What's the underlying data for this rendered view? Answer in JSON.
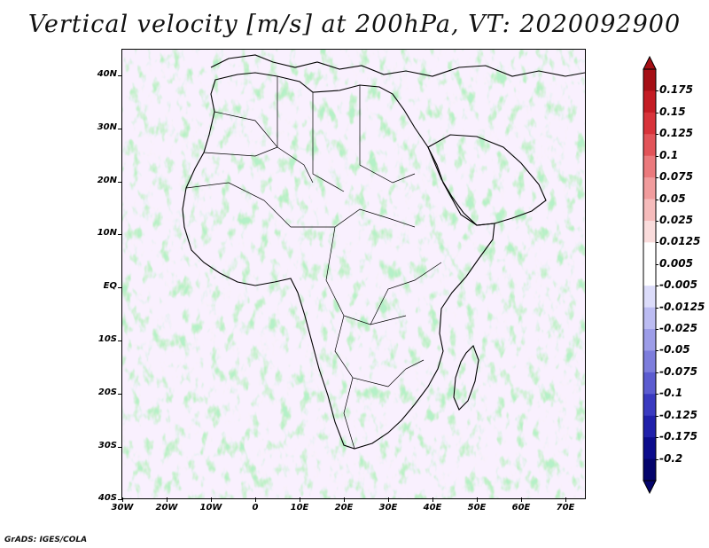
{
  "title": "Vertical velocity [m/s] at 200hPa, VT: 2020092900",
  "credit": "GrADS: IGES/COLA",
  "map": {
    "region": "Africa",
    "lon_range": [
      -30,
      75
    ],
    "lat_range": [
      -40,
      45
    ],
    "field": "vertical velocity",
    "units": "m/s",
    "level": "200hPa",
    "valid_time": "2020092900"
  },
  "lat_labels": [
    "40N",
    "30N",
    "20N",
    "10N",
    "EQ",
    "10S",
    "20S",
    "30S",
    "40S"
  ],
  "lon_labels": [
    "30W",
    "20W",
    "10W",
    "0",
    "10E",
    "20E",
    "30E",
    "40E",
    "50E",
    "60E",
    "70E"
  ],
  "colorbar": {
    "labels": [
      "0.175",
      "0.15",
      "0.125",
      "0.1",
      "0.075",
      "0.05",
      "0.025",
      "0.0125",
      "0.005",
      "-0.005",
      "-0.0125",
      "-0.025",
      "-0.05",
      "-0.075",
      "-0.1",
      "-0.125",
      "-0.175",
      "-0.2"
    ],
    "colors": [
      "#a50f15",
      "#c41c24",
      "#d8333a",
      "#e25459",
      "#eb7a7d",
      "#f19c9d",
      "#f6bcbc",
      "#fadcdc",
      "#ffffff",
      "#ffffff",
      "#dcdcfa",
      "#bcbcf2",
      "#9d9de8",
      "#7d7ddc",
      "#5c5cd0",
      "#3a3ac0",
      "#2020aa",
      "#0c0c8c",
      "#04046c"
    ]
  }
}
